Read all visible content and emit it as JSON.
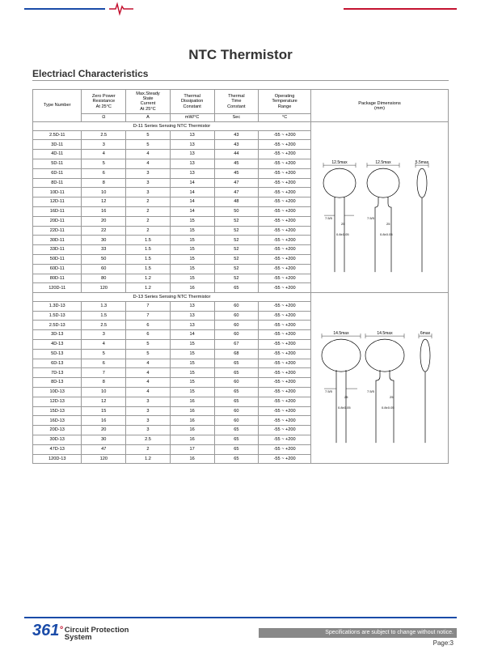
{
  "header": {
    "title": "NTC Thermistor",
    "subtitle": "Electriacl Characteristics"
  },
  "columns": {
    "type": "Type Number",
    "c1": "Zero Power\nResistance\nAt 25°C",
    "c2": "Max.Steady\nState\nCurrent\nAt 25°C",
    "c3": "Thermal\nDissipation\nConstant",
    "c4": "Thermal\nTime\nConstant",
    "c5": "Operating\nTemperature\nRange",
    "pkg": "Package Dimensions\n(mm)"
  },
  "units": {
    "u1": "Ω",
    "u2": "A",
    "u3": "mW/°C",
    "u4": "Sec",
    "u5": "°C"
  },
  "series1_header": "D-11 Series Sensing NTC Thermistor",
  "series1": [
    {
      "t": "2.5D-11",
      "r": "2.5",
      "a": "5",
      "mw": "13",
      "sec": "43",
      "temp": "-55 ~ +200"
    },
    {
      "t": "3D-11",
      "r": "3",
      "a": "5",
      "mw": "13",
      "sec": "43",
      "temp": "-55 ~ +200"
    },
    {
      "t": "4D-11",
      "r": "4",
      "a": "4",
      "mw": "13",
      "sec": "44",
      "temp": "-55 ~ +200"
    },
    {
      "t": "5D-11",
      "r": "5",
      "a": "4",
      "mw": "13",
      "sec": "45",
      "temp": "-55 ~ +200"
    },
    {
      "t": "6D-11",
      "r": "6",
      "a": "3",
      "mw": "13",
      "sec": "45",
      "temp": "-55 ~ +200"
    },
    {
      "t": "8D-11",
      "r": "8",
      "a": "3",
      "mw": "14",
      "sec": "47",
      "temp": "-55 ~ +200"
    },
    {
      "t": "10D-11",
      "r": "10",
      "a": "3",
      "mw": "14",
      "sec": "47",
      "temp": "-55 ~ +200"
    },
    {
      "t": "12D-11",
      "r": "12",
      "a": "2",
      "mw": "14",
      "sec": "48",
      "temp": "-55 ~ +200"
    },
    {
      "t": "16D-11",
      "r": "16",
      "a": "2",
      "mw": "14",
      "sec": "50",
      "temp": "-55 ~ +200"
    },
    {
      "t": "20D-11",
      "r": "20",
      "a": "2",
      "mw": "15",
      "sec": "52",
      "temp": "-55 ~ +200"
    },
    {
      "t": "22D-11",
      "r": "22",
      "a": "2",
      "mw": "15",
      "sec": "52",
      "temp": "-55 ~ +200"
    },
    {
      "t": "30D-11",
      "r": "30",
      "a": "1.5",
      "mw": "15",
      "sec": "52",
      "temp": "-55 ~ +200"
    },
    {
      "t": "33D-11",
      "r": "33",
      "a": "1.5",
      "mw": "15",
      "sec": "52",
      "temp": "-55 ~ +200"
    },
    {
      "t": "50D-11",
      "r": "50",
      "a": "1.5",
      "mw": "15",
      "sec": "52",
      "temp": "-55 ~ +200"
    },
    {
      "t": "60D-11",
      "r": "60",
      "a": "1.5",
      "mw": "15",
      "sec": "52",
      "temp": "-55 ~ +200"
    },
    {
      "t": "80D-11",
      "r": "80",
      "a": "1.2",
      "mw": "15",
      "sec": "52",
      "temp": "-55 ~ +200"
    },
    {
      "t": "120D-11",
      "r": "120",
      "a": "1.2",
      "mw": "16",
      "sec": "65",
      "temp": "-55 ~ +200"
    }
  ],
  "series2_header": "D-13 Series Sensing NTC Thermistor",
  "series2": [
    {
      "t": "1.3D-13",
      "r": "1.3",
      "a": "7",
      "mw": "13",
      "sec": "60",
      "temp": "-55 ~ +200"
    },
    {
      "t": "1.5D-13",
      "r": "1.5",
      "a": "7",
      "mw": "13",
      "sec": "60",
      "temp": "-55 ~ +200"
    },
    {
      "t": "2.5D-13",
      "r": "2.5",
      "a": "6",
      "mw": "13",
      "sec": "60",
      "temp": "-55 ~ +200"
    },
    {
      "t": "3D-13",
      "r": "3",
      "a": "6",
      "mw": "14",
      "sec": "60",
      "temp": "-55 ~ +200"
    },
    {
      "t": "4D-13",
      "r": "4",
      "a": "5",
      "mw": "15",
      "sec": "67",
      "temp": "-55 ~ +200"
    },
    {
      "t": "5D-13",
      "r": "5",
      "a": "5",
      "mw": "15",
      "sec": "68",
      "temp": "-55 ~ +200"
    },
    {
      "t": "6D-13",
      "r": "6",
      "a": "4",
      "mw": "15",
      "sec": "65",
      "temp": "-55 ~ +200"
    },
    {
      "t": "7D-13",
      "r": "7",
      "a": "4",
      "mw": "15",
      "sec": "65",
      "temp": "-55 ~ +200"
    },
    {
      "t": "8D-13",
      "r": "8",
      "a": "4",
      "mw": "15",
      "sec": "60",
      "temp": "-55 ~ +200"
    },
    {
      "t": "10D-13",
      "r": "10",
      "a": "4",
      "mw": "15",
      "sec": "65",
      "temp": "-55 ~ +200"
    },
    {
      "t": "12D-13",
      "r": "12",
      "a": "3",
      "mw": "16",
      "sec": "65",
      "temp": "-55 ~ +200"
    },
    {
      "t": "15D-13",
      "r": "15",
      "a": "3",
      "mw": "16",
      "sec": "60",
      "temp": "-55 ~ +200"
    },
    {
      "t": "16D-13",
      "r": "16",
      "a": "3",
      "mw": "16",
      "sec": "60",
      "temp": "-55 ~ +200"
    },
    {
      "t": "20D-13",
      "r": "20",
      "a": "3",
      "mw": "16",
      "sec": "65",
      "temp": "-55 ~ +200"
    },
    {
      "t": "30D-13",
      "r": "30",
      "a": "2.5",
      "mw": "16",
      "sec": "65",
      "temp": "-55 ~ +200"
    },
    {
      "t": "47D-13",
      "r": "47",
      "a": "2",
      "mw": "17",
      "sec": "65",
      "temp": "-55 ~ +200"
    },
    {
      "t": "120D-13",
      "r": "120",
      "a": "1.2",
      "mw": "16",
      "sec": "65",
      "temp": "-55 ~ +200"
    }
  ],
  "pkg1": {
    "dim1": "12.5max",
    "dim2": "12.5max",
    "dim3": "5.5max",
    "lead1": "7.5/5",
    "lead2": "0.8±0.05",
    "lead3": "7.5/5",
    "lead4": "0.8±0.05",
    "res": "25"
  },
  "pkg2": {
    "dim1": "14.5max",
    "dim2": "14.5max",
    "dim3": "6max",
    "lead1": "7.5/5",
    "lead2": "0.8±0.05",
    "lead3": "7.5/5",
    "lead4": "0.8±0.05",
    "res": "25"
  },
  "footer": {
    "logo_361": "361",
    "logo_deg": "°",
    "logo_cp": "Circuit Protection\nSystem",
    "disclaimer": "Specifications are subject to change without notice.",
    "page": "Page:3"
  },
  "colors": {
    "blue": "#1a4ba8",
    "red": "#c41230",
    "gray_bar": "#888888",
    "border": "#999999",
    "bg": "#ffffff",
    "text": "#000000"
  }
}
